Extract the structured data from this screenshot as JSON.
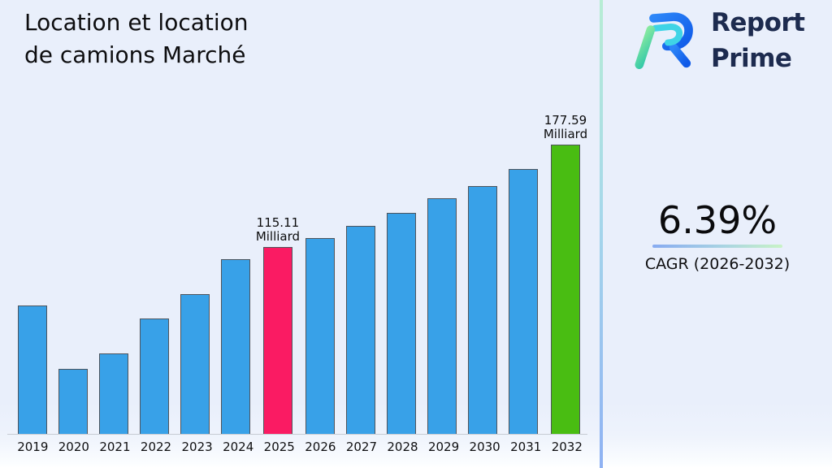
{
  "title": {
    "line1": "Location et location",
    "line2": "de camions Marché"
  },
  "brand": {
    "name_line1": "Report",
    "name_line2": "Prime",
    "text_color": "#1d2b4f",
    "logo_blue": "#1f72f2",
    "logo_cyan": "#3fd4e6",
    "logo_green_light": "#9ef29e",
    "logo_green_teal": "#35c9a8"
  },
  "stats": {
    "cagr_value": "6.39%",
    "cagr_label": "CAGR (2026-2032)"
  },
  "chart_data": {
    "type": "bar",
    "title": "Location et location de camions Marché",
    "unit": "Milliard",
    "categories": [
      "2019",
      "2020",
      "2021",
      "2022",
      "2023",
      "2024",
      "2025",
      "2026",
      "2027",
      "2028",
      "2029",
      "2030",
      "2031",
      "2032"
    ],
    "values": [
      79,
      40.5,
      49.5,
      71,
      86,
      107.5,
      115.11,
      120.5,
      128,
      136,
      145,
      152,
      162.5,
      177.59
    ],
    "value_labels": {
      "2025": [
        "115.11",
        "Milliard"
      ],
      "2032": [
        "177.59",
        "Milliard"
      ]
    },
    "bar_color_default": "#38a1e8",
    "bar_colors_highlight": {
      "2025": "#fa1b63",
      "2032": "#49bd12"
    },
    "ylim": [
      0,
      185
    ],
    "grid": false,
    "legend": null,
    "xlabel": "",
    "ylabel": ""
  }
}
